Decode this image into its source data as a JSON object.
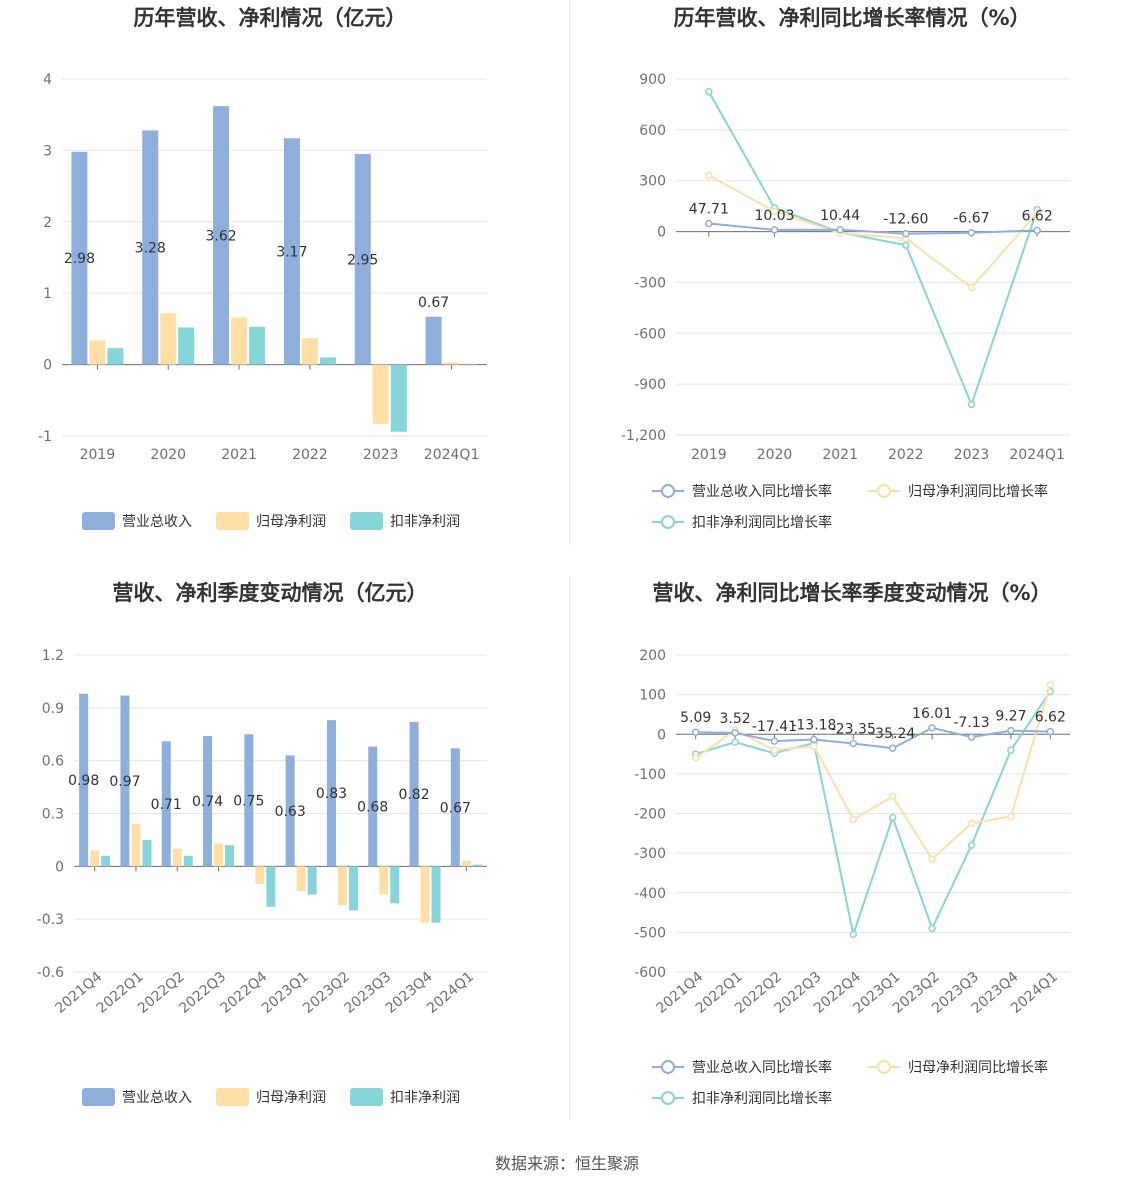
{
  "colors": {
    "revenue": "#8eafdc",
    "net_profit": "#ffdfa6",
    "deducted_profit": "#85d5d9",
    "revenue_line": "#8eafdc",
    "net_profit_line": "#ffdfa6",
    "deducted_profit_line": "#85d5d9"
  },
  "source_text": "数据来源：恒生聚源",
  "chart_data": [
    {
      "type": "bar",
      "title": "历年营收、净利情况（亿元）",
      "categories": [
        "2019",
        "2020",
        "2021",
        "2022",
        "2023",
        "2024Q1"
      ],
      "ylim": [
        -1,
        4
      ],
      "yticks": [
        -1,
        0,
        1,
        2,
        3,
        4
      ],
      "series": [
        {
          "name": "营业总收入",
          "values": [
            2.98,
            3.28,
            3.62,
            3.17,
            2.95,
            0.67
          ],
          "labels": [
            "2.98",
            "3.28",
            "3.62",
            "3.17",
            "2.95",
            "0.67"
          ]
        },
        {
          "name": "归母净利润",
          "values": [
            0.34,
            0.72,
            0.66,
            0.37,
            -0.83,
            0.03
          ]
        },
        {
          "name": "扣非净利润",
          "values": [
            0.23,
            0.52,
            0.53,
            0.1,
            -0.94,
            0.01
          ]
        }
      ],
      "legend": "bottom"
    },
    {
      "type": "line",
      "title": "历年营收、净利同比增长率情况（%）",
      "categories": [
        "2019",
        "2020",
        "2021",
        "2022",
        "2023",
        "2024Q1"
      ],
      "ylim": [
        -1200,
        900
      ],
      "yticks": [
        -1200,
        -900,
        -600,
        -300,
        0,
        300,
        600,
        900
      ],
      "ytick_labels": [
        "-1,200",
        "-900",
        "-600",
        "-300",
        "0",
        "300",
        "600",
        "900"
      ],
      "series": [
        {
          "name": "营业总收入同比增长率",
          "values": [
            47.71,
            10.03,
            10.44,
            -12.6,
            -6.67,
            6.62
          ],
          "labels": [
            "47.71",
            "10.03",
            "10.44",
            "-12.60",
            "-6.67",
            "6.62"
          ]
        },
        {
          "name": "归母净利润同比增长率",
          "values": [
            330,
            120,
            -10,
            -40,
            -330,
            110
          ]
        },
        {
          "name": "扣非净利润同比增长率",
          "values": [
            825,
            140,
            -5,
            -80,
            -1020,
            130
          ]
        }
      ],
      "legend": "bottom"
    },
    {
      "type": "bar",
      "title": "营收、净利季度变动情况（亿元）",
      "categories": [
        "2021Q4",
        "2022Q1",
        "2022Q2",
        "2022Q3",
        "2022Q4",
        "2023Q1",
        "2023Q2",
        "2023Q3",
        "2023Q4",
        "2024Q1"
      ],
      "ylim": [
        -0.6,
        1.2
      ],
      "yticks": [
        -0.6,
        -0.3,
        0,
        0.3,
        0.6,
        0.9,
        1.2
      ],
      "ytick_labels": [
        "-0.6",
        "-0.3",
        "0",
        "0.3",
        "0.6",
        "0.9",
        "1.2"
      ],
      "series": [
        {
          "name": "营业总收入",
          "values": [
            0.98,
            0.97,
            0.71,
            0.74,
            0.75,
            0.63,
            0.83,
            0.68,
            0.82,
            0.67
          ],
          "labels": [
            "0.98",
            "0.97",
            "0.71",
            "0.74",
            "0.75",
            "0.63",
            "0.83",
            "0.68",
            "0.82",
            "0.67"
          ]
        },
        {
          "name": "归母净利润",
          "values": [
            0.09,
            0.24,
            0.1,
            0.13,
            -0.1,
            -0.14,
            -0.22,
            -0.16,
            -0.32,
            0.03
          ]
        },
        {
          "name": "扣非净利润",
          "values": [
            0.06,
            0.15,
            0.06,
            0.12,
            -0.23,
            -0.16,
            -0.25,
            -0.21,
            -0.32,
            0.01
          ]
        }
      ],
      "legend": "bottom"
    },
    {
      "type": "line",
      "title": "营收、净利同比增长率季度变动情况（%）",
      "categories": [
        "2021Q4",
        "2022Q1",
        "2022Q2",
        "2022Q3",
        "2022Q4",
        "2023Q1",
        "2023Q2",
        "2023Q3",
        "2023Q4",
        "2024Q1"
      ],
      "ylim": [
        -600,
        200
      ],
      "yticks": [
        -600,
        -500,
        -400,
        -300,
        -200,
        -100,
        0,
        100,
        200
      ],
      "ytick_labels": [
        "-600",
        "-500",
        "-400",
        "-300",
        "-200",
        "-100",
        "0",
        "100",
        "200"
      ],
      "series": [
        {
          "name": "营业总收入同比增长率",
          "values": [
            5.09,
            3.52,
            -17.41,
            -13.18,
            -23.35,
            -35.24,
            16.01,
            -7.13,
            9.27,
            6.62
          ],
          "labels": [
            "5.09",
            "3.52",
            "-17.41",
            "-13.18",
            "-23.35",
            "-35.24",
            "16.01",
            "-7.13",
            "9.27",
            "6.62"
          ]
        },
        {
          "name": "归母净利润同比增长率",
          "values": [
            -60,
            10,
            -40,
            -30,
            -215,
            -157,
            -315,
            -225,
            -207,
            125
          ]
        },
        {
          "name": "扣非净利润同比增长率",
          "values": [
            -50,
            -20,
            -48,
            -22,
            -505,
            -210,
            -490,
            -280,
            -40,
            108
          ]
        }
      ],
      "legend": "bottom"
    }
  ]
}
